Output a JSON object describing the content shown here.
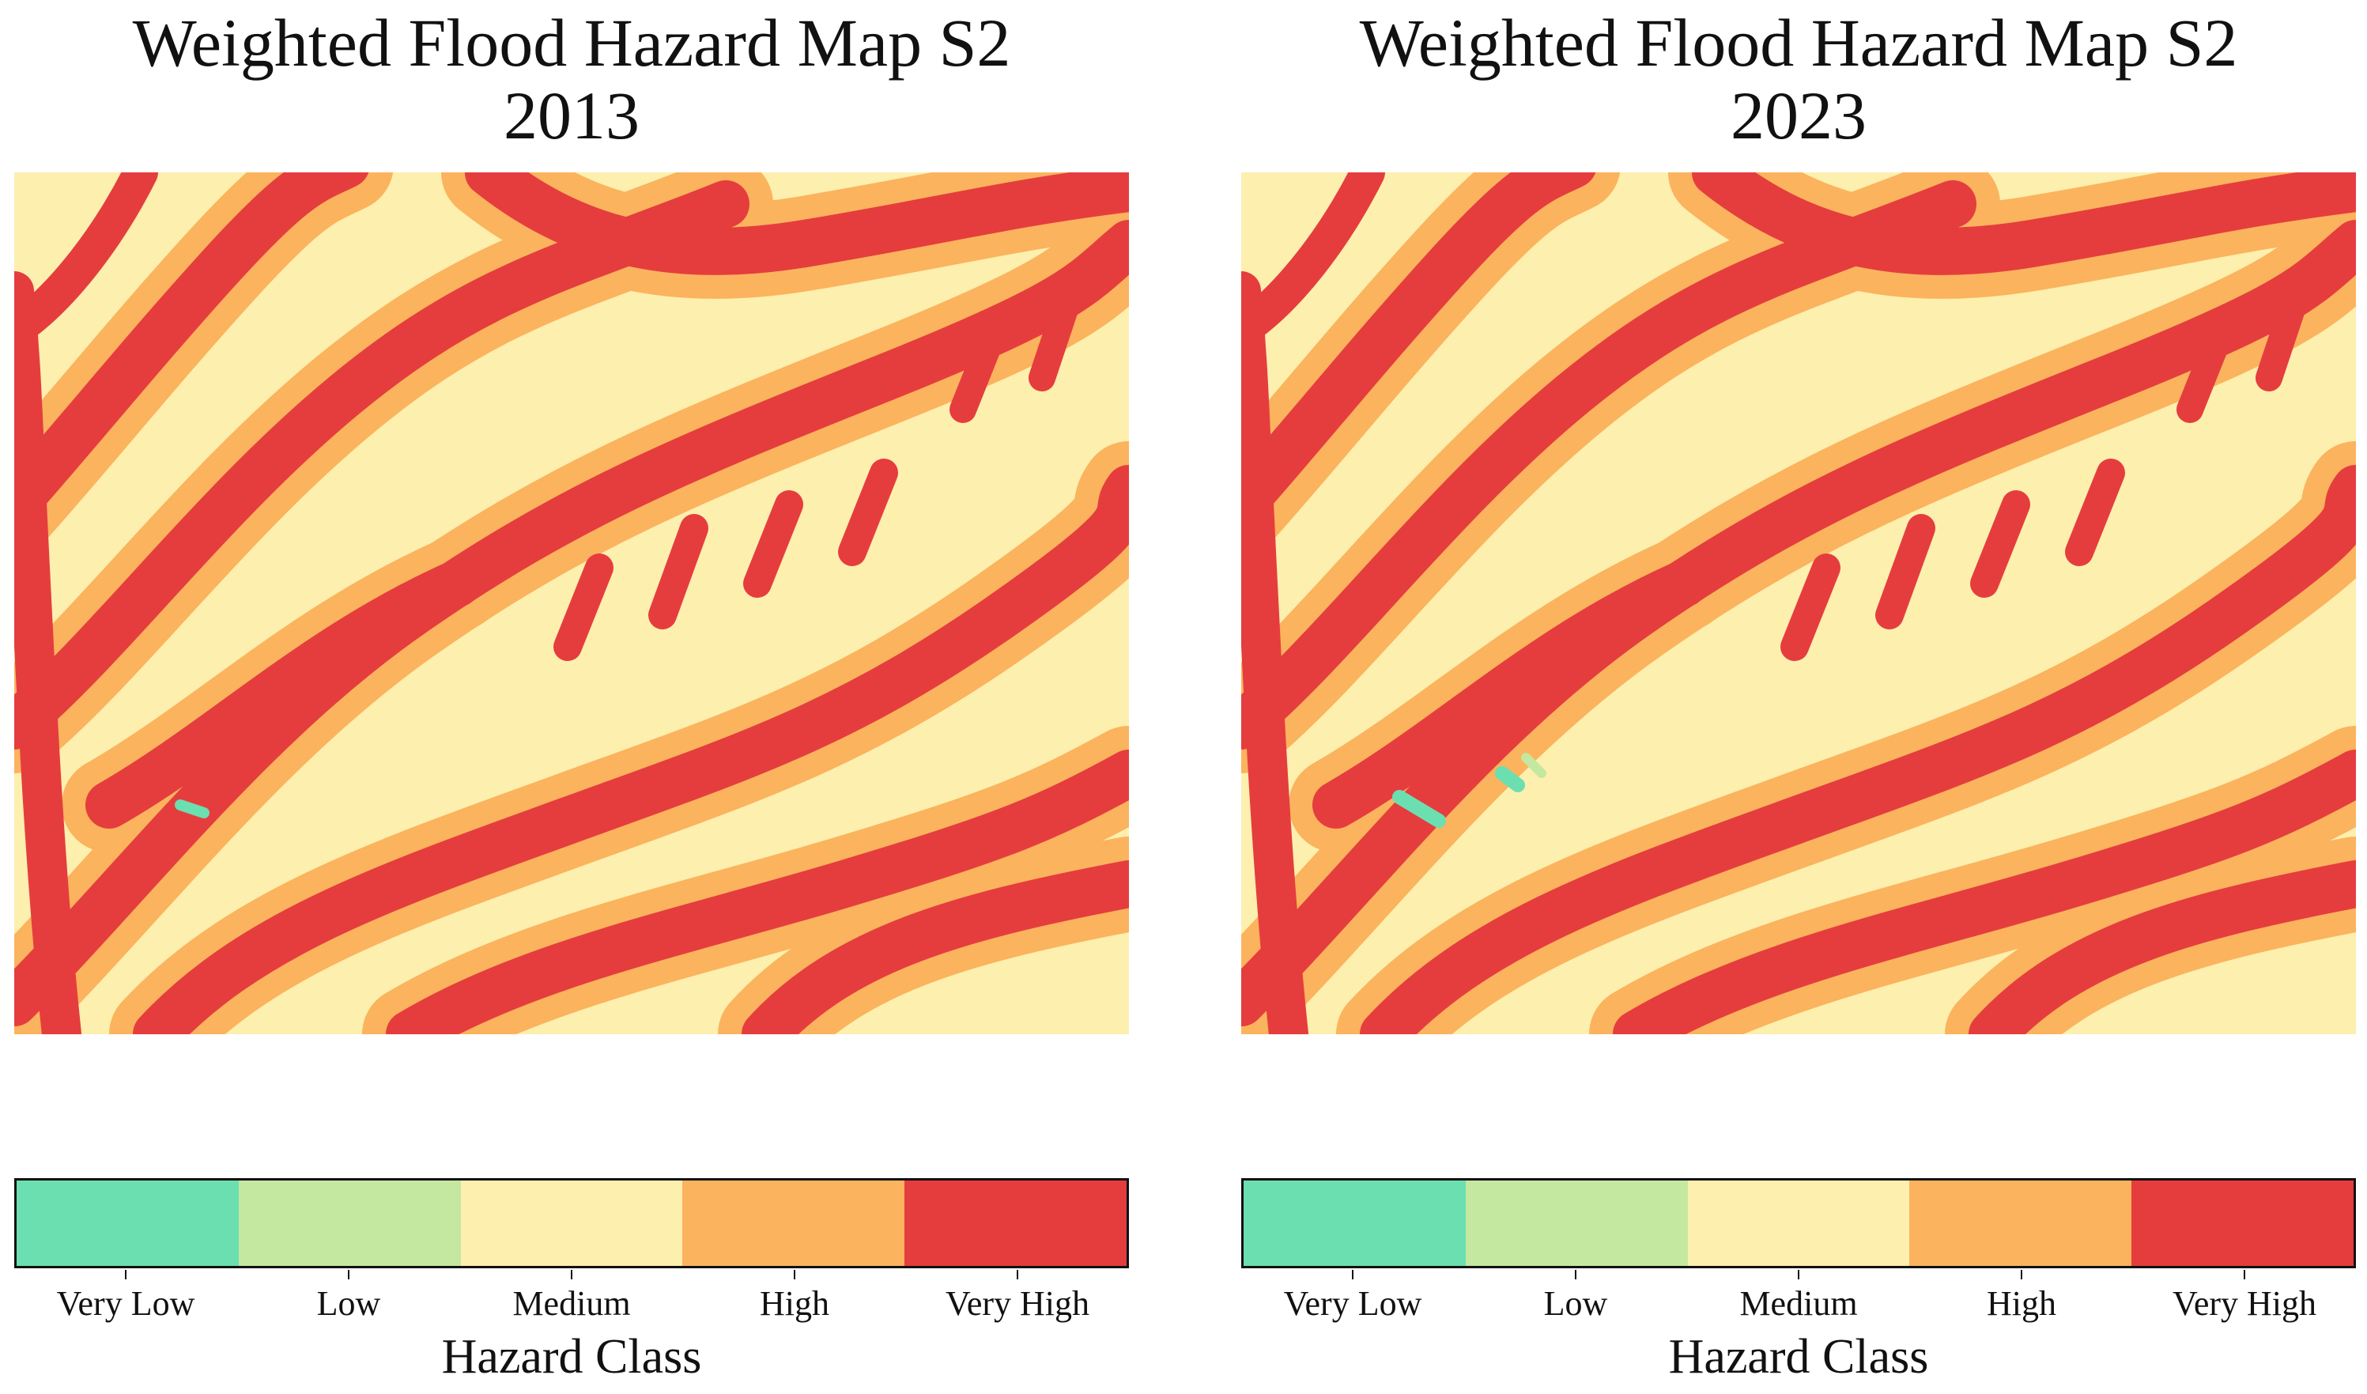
{
  "colors": {
    "very_low": "#6bdfb0",
    "low": "#c4e8a0",
    "medium": "#fdefae",
    "high": "#fbb35e",
    "very_high": "#e53d3d"
  },
  "panels": [
    {
      "title_line1": "Weighted Flood Hazard Map S2",
      "title_line2": "2013",
      "legend_title": "Hazard Class",
      "classes": [
        "Very Low",
        "Low",
        "Medium",
        "High",
        "Very High"
      ]
    },
    {
      "title_line1": "Weighted Flood Hazard Map S2",
      "title_line2": "2023",
      "legend_title": "Hazard Class",
      "classes": [
        "Very Low",
        "Low",
        "Medium",
        "High",
        "Very High"
      ]
    }
  ]
}
